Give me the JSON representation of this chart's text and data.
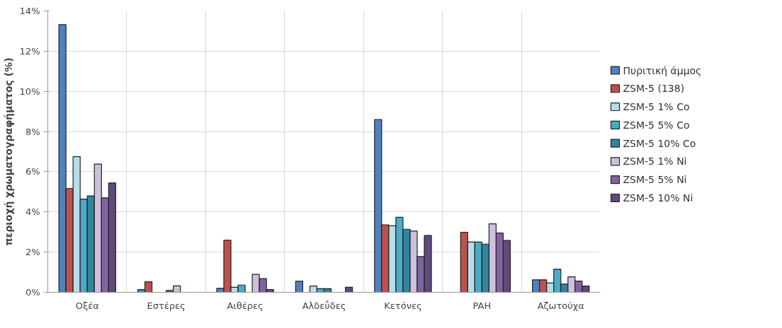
{
  "chart_data": {
    "type": "bar",
    "ylabel": "περιοχή χρωματογραφήματος (%)",
    "categories": [
      "Οξέα",
      "Εστέρες",
      "Αιθέρες",
      "Αλδεΰδες",
      "Κετόνες",
      "PAH",
      "Αζωτούχα"
    ],
    "series": [
      {
        "name": "Πυριτική άμμος",
        "color": "#4f81bd",
        "values": [
          13.32,
          0.14,
          0.2,
          0.55,
          8.6,
          null,
          0.62
        ]
      },
      {
        "name": "ZSM-5 (138)",
        "color": "#c0504d",
        "values": [
          5.17,
          0.52,
          2.59,
          null,
          3.36,
          2.99,
          0.62
        ]
      },
      {
        "name": "ZSM-5 1% Co",
        "color": "#b7dde8",
        "values": [
          6.75,
          null,
          0.25,
          0.31,
          3.31,
          2.5,
          0.46
        ]
      },
      {
        "name": "ZSM-5 5% Co",
        "color": "#4bacc6",
        "values": [
          4.64,
          null,
          0.36,
          0.18,
          3.73,
          2.5,
          1.15
        ]
      },
      {
        "name": "ZSM-5 10% Co",
        "color": "#31859c",
        "values": [
          4.8,
          0.09,
          null,
          0.18,
          3.14,
          2.4,
          0.41
        ]
      },
      {
        "name": "ZSM-5 1% Ni",
        "color": "#ccc1da",
        "values": [
          6.38,
          0.32,
          0.89,
          null,
          3.05,
          3.41,
          0.77
        ]
      },
      {
        "name": "ZSM-5 5% Ni",
        "color": "#8064a2",
        "values": [
          4.7,
          null,
          0.68,
          null,
          1.78,
          2.95,
          0.56
        ]
      },
      {
        "name": "ZSM-5 10% Ni",
        "color": "#604a7b",
        "values": [
          5.44,
          null,
          0.14,
          0.25,
          2.83,
          2.58,
          0.31
        ]
      }
    ],
    "ylim": [
      0,
      14
    ],
    "yticks": [
      {
        "value": 0,
        "label": "0%"
      },
      {
        "value": 2,
        "label": "2%"
      },
      {
        "value": 4,
        "label": "4%"
      },
      {
        "value": 6,
        "label": "6%"
      },
      {
        "value": 8,
        "label": "8%"
      },
      {
        "value": 10,
        "label": "10%"
      },
      {
        "value": 12,
        "label": "12%"
      },
      {
        "value": 14,
        "label": "14%"
      }
    ],
    "grid": true,
    "legend": "right"
  }
}
